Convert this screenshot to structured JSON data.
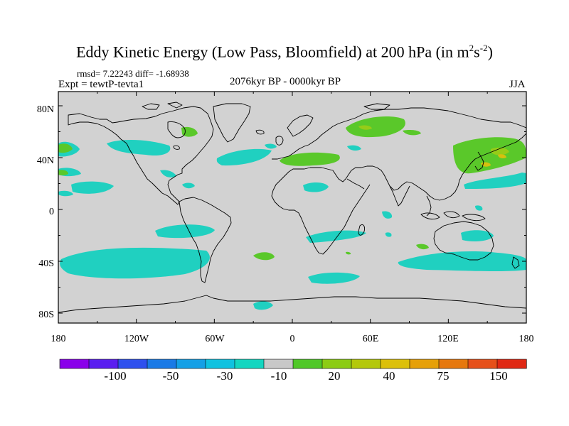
{
  "header": {
    "title": "Eddy Kinetic Energy (Low Pass, Bloomfield) at 200 hPa (in m",
    "title_sup1": "2",
    "title_mid": "s",
    "title_sup2": "-2",
    "title_end": ")",
    "stats": "rmsd= 7.22243 diff= -1.68938",
    "expt": "Expt = tewtP-tevta1",
    "period": "2076kyr BP - 0000kyr BP",
    "season": "JJA"
  },
  "axes": {
    "lat_labels": [
      "80N",
      "40N",
      "0",
      "40S",
      "80S"
    ],
    "lon_labels": [
      "180",
      "120W",
      "60W",
      "0",
      "60E",
      "120E",
      "180"
    ]
  },
  "colorbar": {
    "colors": [
      "#8a00ea",
      "#5a1ef0",
      "#2e50ee",
      "#1a7ae6",
      "#15a0e6",
      "#10c2e0",
      "#14d6c0",
      "#c8c8c8",
      "#50c828",
      "#8ccc14",
      "#b4c80a",
      "#dcc00a",
      "#e6a008",
      "#e6780e",
      "#e6501a",
      "#e02814"
    ],
    "labels": [
      "-100",
      "-50",
      "-30",
      "-10",
      "20",
      "40",
      "75",
      "150"
    ]
  },
  "map_colors": {
    "background": "#d2d2d2",
    "negative": "#20d0c0",
    "positive_low": "#5ac82a",
    "positive_mid": "#96cc18",
    "positive_high": "#d6c00e",
    "coast": "#000000"
  }
}
